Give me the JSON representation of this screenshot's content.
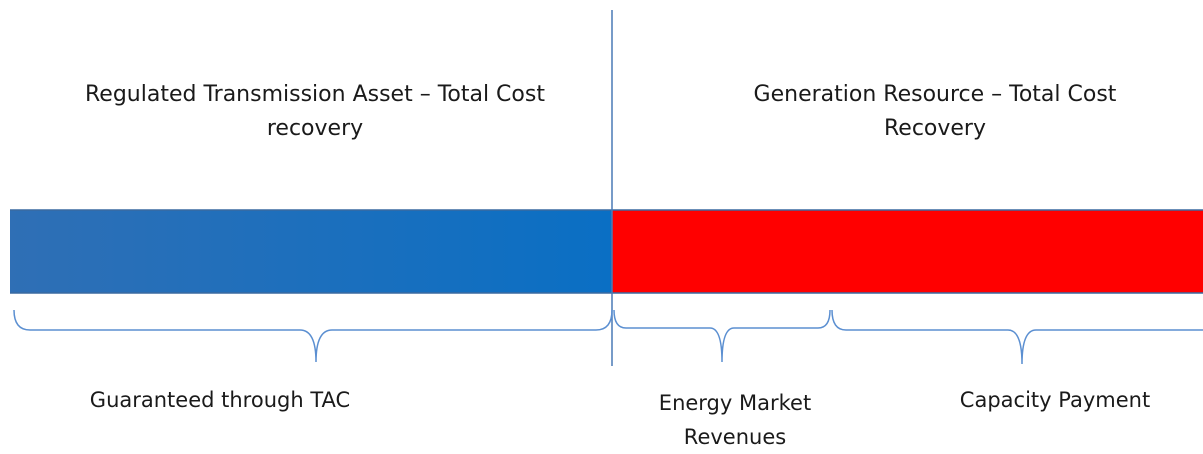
{
  "left_section": {
    "title": "Regulated Transmission Asset – Total Cost recovery",
    "bar_color_start": "#2f6fb5",
    "bar_color_end": "#0a6fc4"
  },
  "right_section": {
    "title": "Generation Resource – Total Cost Recovery",
    "bar_color": "#ff0000"
  },
  "braces": {
    "tac": "Guaranteed through TAC",
    "energy": "Energy Market Revenues",
    "capacity": "Capacity Payment"
  },
  "colors": {
    "divider": "#4a7ab5",
    "brace": "#5b8fd1"
  }
}
